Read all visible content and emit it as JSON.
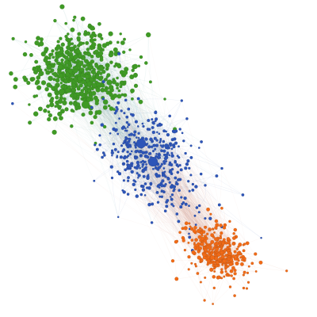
{
  "diagram": {
    "type": "network-graph",
    "background": "#ffffff",
    "node_stroke": "#1b1b1b",
    "clusters": [
      {
        "name": "",
        "color": "#3f9a25",
        "edge_color": "#4f9a8e",
        "relative_size": "large"
      },
      {
        "name": "",
        "color": "#2d55b8",
        "edge_color": "#4a6fb6",
        "relative_size": "medium"
      },
      {
        "name": "",
        "color": "#f06a16",
        "edge_color": "#e39a7a",
        "relative_size": "medium"
      }
    ],
    "inter_cluster_edges": [
      {
        "from": 0,
        "to": 1,
        "color": "#5fa3a6"
      },
      {
        "from": 1,
        "to": 2,
        "color": "#d38f86"
      },
      {
        "from": 0,
        "to": 2,
        "color": "#cfa58a"
      }
    ]
  }
}
